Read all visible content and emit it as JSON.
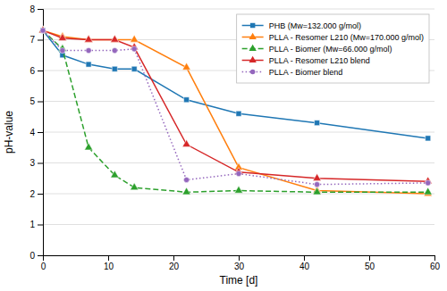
{
  "chart_data": {
    "type": "line",
    "xlabel": "Time [d]",
    "ylabel": "pH-value",
    "x": [
      0,
      3,
      7,
      11,
      14,
      22,
      30,
      42,
      59
    ],
    "series": [
      {
        "name": "PHB (Mw=132.000 g/mol)",
        "values": [
          7.3,
          6.5,
          6.2,
          6.05,
          6.05,
          5.05,
          4.6,
          4.3,
          3.8
        ],
        "marker": "square",
        "line_style": "solid"
      },
      {
        "name": "PLLA - Resomer L210 (Mw=170.000 g/mol)",
        "values": [
          7.3,
          7.1,
          7.0,
          7.0,
          7.0,
          6.1,
          2.85,
          2.1,
          2.0
        ],
        "marker": "triangle",
        "line_style": "solid"
      },
      {
        "name": "PLLA - Biomer (Mw=66.000 g/mol)",
        "values": [
          7.3,
          6.7,
          3.5,
          2.6,
          2.2,
          2.05,
          2.1,
          2.05,
          2.05
        ],
        "marker": "triangle",
        "line_style": "dashed"
      },
      {
        "name": "PLLA - Resomer L210 blend",
        "values": [
          7.3,
          7.05,
          7.0,
          7.0,
          6.75,
          3.6,
          2.7,
          2.5,
          2.4
        ],
        "marker": "triangle",
        "line_style": "solid"
      },
      {
        "name": "PLLA - Biomer blend",
        "values": [
          7.3,
          6.65,
          6.65,
          6.65,
          6.7,
          2.45,
          2.65,
          2.3,
          2.35
        ],
        "marker": "circle",
        "line_style": "dotted"
      }
    ],
    "xlim": [
      0,
      60
    ],
    "ylim": [
      0,
      8
    ],
    "xticks": [
      0,
      10,
      20,
      30,
      40,
      50,
      60
    ],
    "yticks": [
      0,
      1,
      2,
      3,
      4,
      5,
      6,
      7,
      8
    ],
    "grid": true,
    "legend": "upper right"
  }
}
